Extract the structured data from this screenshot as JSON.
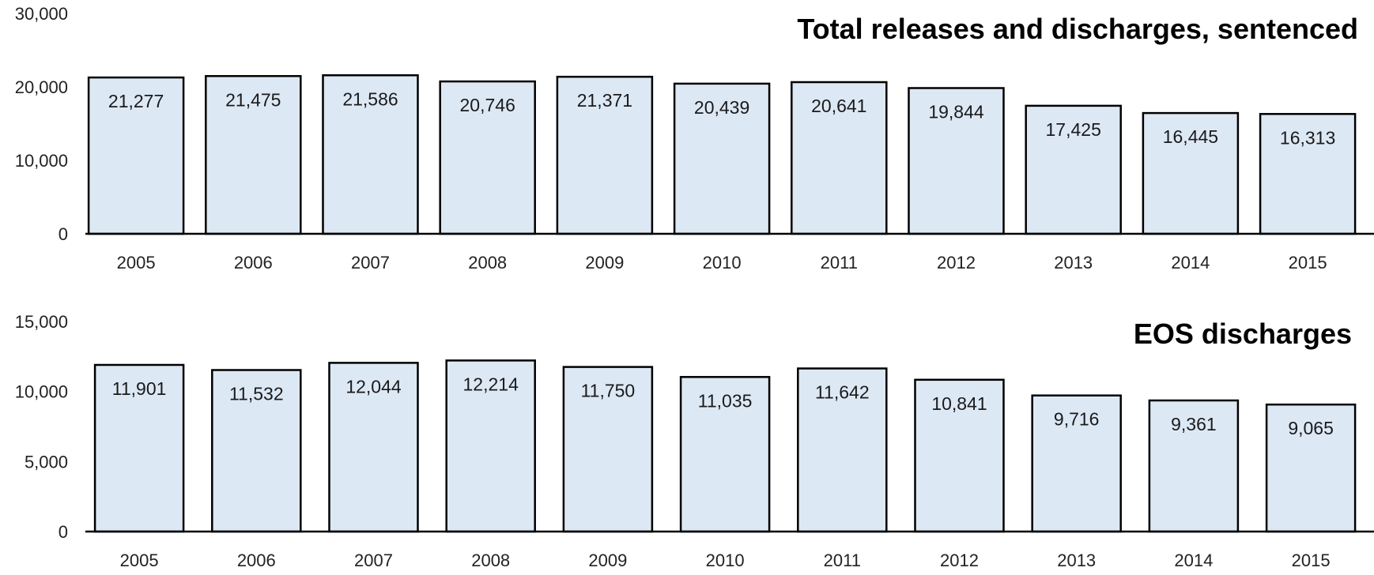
{
  "chart_data": [
    {
      "type": "bar",
      "title": "Total releases and discharges, sentenced",
      "xlabel": "",
      "ylabel": "",
      "categories": [
        "2005",
        "2006",
        "2007",
        "2008",
        "2009",
        "2010",
        "2011",
        "2012",
        "2013",
        "2014",
        "2015"
      ],
      "values": [
        21277,
        21475,
        21586,
        20746,
        21371,
        20439,
        20641,
        19844,
        17425,
        16445,
        16313
      ],
      "value_labels": [
        "21,277",
        "21,475",
        "21,586",
        "20,746",
        "21,371",
        "20,439",
        "20,641",
        "19,844",
        "17,425",
        "16,445",
        "16,313"
      ],
      "ylim": [
        0,
        30000
      ],
      "yticks": [
        0,
        10000,
        20000,
        30000
      ],
      "ytick_labels": [
        "0",
        "10,000",
        "20,000",
        "30,000"
      ],
      "grid": false,
      "legend": "none",
      "bar_fill": "#dde8f5",
      "bar_stroke": "#000000"
    },
    {
      "type": "bar",
      "title": "EOS discharges",
      "xlabel": "",
      "ylabel": "",
      "categories": [
        "2005",
        "2006",
        "2007",
        "2008",
        "2009",
        "2010",
        "2011",
        "2012",
        "2013",
        "2014",
        "2015"
      ],
      "values": [
        11901,
        11532,
        12044,
        12214,
        11750,
        11035,
        11642,
        10841,
        9716,
        9361,
        9065
      ],
      "value_labels": [
        "11,901",
        "11,532",
        "12,044",
        "12,214",
        "11,750",
        "11,035",
        "11,642",
        "10,841",
        "9,716",
        "9,361",
        "9,065"
      ],
      "ylim": [
        0,
        15000
      ],
      "yticks": [
        0,
        5000,
        10000,
        15000
      ],
      "ytick_labels": [
        "0",
        "5,000",
        "10,000",
        "15,000"
      ],
      "grid": false,
      "legend": "none",
      "bar_fill": "#dde8f5",
      "bar_stroke": "#000000"
    }
  ]
}
